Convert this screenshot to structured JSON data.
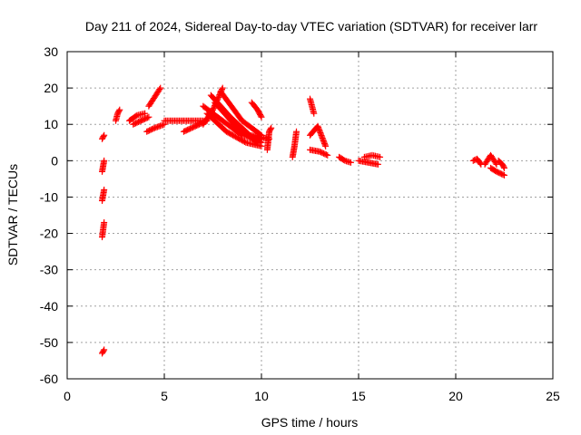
{
  "chart_data": {
    "type": "scatter",
    "title": "Day 211 of 2024, Sidereal Day-to-day VTEC variation (SDTVAR) for receiver larr",
    "xlabel": "GPS time / hours",
    "ylabel": "SDTVAR / TECUs",
    "xlim": [
      0,
      25
    ],
    "ylim": [
      -60,
      30
    ],
    "xticks": [
      0,
      5,
      10,
      15,
      20,
      25
    ],
    "yticks": [
      -60,
      -50,
      -40,
      -30,
      -20,
      -10,
      0,
      10,
      20,
      30
    ],
    "grid": true,
    "marker": "+",
    "color": "#ff0000",
    "series": [
      {
        "segments": [
          [
            [
              1.8,
              -21
            ],
            [
              1.85,
              -19
            ],
            [
              1.9,
              -17
            ]
          ],
          [
            [
              1.8,
              -11
            ],
            [
              1.85,
              -9.5
            ],
            [
              1.9,
              -8
            ]
          ],
          [
            [
              1.8,
              -3
            ],
            [
              1.85,
              -1.5
            ],
            [
              1.9,
              0
            ]
          ],
          [
            [
              1.8,
              6
            ],
            [
              1.9,
              7
            ]
          ],
          [
            [
              1.8,
              -53
            ],
            [
              1.9,
              -52
            ]
          ],
          [
            [
              2.5,
              11
            ],
            [
              2.6,
              13
            ],
            [
              2.7,
              14
            ]
          ],
          [
            [
              3.2,
              11
            ],
            [
              3.6,
              12.5
            ],
            [
              4.0,
              13
            ]
          ],
          [
            [
              3.4,
              10
            ],
            [
              3.8,
              11
            ],
            [
              4.2,
              12
            ]
          ],
          [
            [
              4.2,
              15
            ],
            [
              4.5,
              17.5
            ],
            [
              4.8,
              20
            ]
          ],
          [
            [
              4.1,
              8
            ],
            [
              4.5,
              9
            ],
            [
              5.0,
              10
            ]
          ],
          [
            [
              5.0,
              11
            ],
            [
              6.0,
              11
            ],
            [
              7.0,
              11
            ]
          ],
          [
            [
              6.0,
              8
            ],
            [
              6.6,
              9.5
            ],
            [
              7.2,
              11
            ]
          ],
          [
            [
              7.0,
              10
            ],
            [
              7.5,
              14
            ],
            [
              8.0,
              20
            ]
          ],
          [
            [
              7.0,
              15
            ],
            [
              8.0,
              11
            ],
            [
              9.0,
              7
            ],
            [
              10.0,
              6
            ]
          ],
          [
            [
              7.4,
              18
            ],
            [
              8.4,
              12
            ],
            [
              9.4,
              7
            ],
            [
              10.4,
              6
            ]
          ],
          [
            [
              7.2,
              13
            ],
            [
              8.2,
              8
            ],
            [
              9.2,
              5
            ],
            [
              10.0,
              4
            ]
          ],
          [
            [
              7.6,
              16
            ],
            [
              8.6,
              10
            ],
            [
              9.6,
              6
            ],
            [
              10.0,
              5
            ]
          ],
          [
            [
              7.9,
              19
            ],
            [
              9.0,
              11
            ],
            [
              10.0,
              7
            ]
          ],
          [
            [
              8.0,
              14
            ],
            [
              9.0,
              8
            ],
            [
              9.8,
              5
            ]
          ],
          [
            [
              9.5,
              16
            ],
            [
              9.8,
              14
            ],
            [
              10.0,
              12
            ]
          ],
          [
            [
              10.3,
              3
            ],
            [
              10.4,
              8
            ],
            [
              10.5,
              9
            ]
          ],
          [
            [
              11.6,
              1
            ],
            [
              11.7,
              4
            ],
            [
              11.8,
              8
            ]
          ],
          [
            [
              12.5,
              17
            ],
            [
              12.6,
              15
            ],
            [
              12.7,
              13
            ]
          ],
          [
            [
              12.5,
              7
            ],
            [
              12.9,
              9.5
            ],
            [
              13.3,
              4
            ]
          ],
          [
            [
              12.5,
              3
            ],
            [
              13.0,
              2.5
            ],
            [
              13.4,
              1.5
            ]
          ],
          [
            [
              14.0,
              1
            ],
            [
              14.3,
              0
            ],
            [
              14.6,
              -0.5
            ]
          ],
          [
            [
              15.0,
              0
            ],
            [
              15.5,
              -0.5
            ],
            [
              16.0,
              -1
            ]
          ],
          [
            [
              15.3,
              1
            ],
            [
              15.7,
              1.5
            ],
            [
              16.1,
              1
            ]
          ],
          [
            [
              20.9,
              0
            ],
            [
              21.1,
              0.5
            ],
            [
              21.3,
              -1
            ]
          ],
          [
            [
              21.5,
              -1
            ],
            [
              21.8,
              1.5
            ],
            [
              22.1,
              -1
            ]
          ],
          [
            [
              21.8,
              -2
            ],
            [
              22.1,
              -3
            ],
            [
              22.5,
              -4
            ]
          ],
          [
            [
              22.2,
              0
            ],
            [
              22.4,
              -1
            ],
            [
              22.5,
              -2
            ]
          ]
        ]
      }
    ]
  }
}
